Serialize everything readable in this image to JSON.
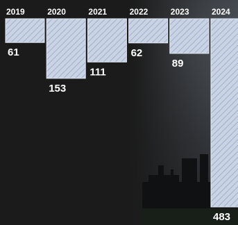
{
  "chart_data": {
    "type": "bar",
    "orientation": "downward",
    "categories": [
      "2019",
      "2020",
      "2021",
      "2022",
      "2023",
      "2024"
    ],
    "values": [
      61,
      153,
      111,
      62,
      89,
      483
    ],
    "value_labels": [
      "61",
      "153",
      "111",
      "62",
      "89",
      "483"
    ],
    "title": "",
    "xlabel": "",
    "ylabel": "",
    "ylim": [
      0,
      483
    ],
    "grid": false,
    "legend": "none",
    "bar_fill": "#c9d3e4",
    "bar_hatch": "#9fb0cb",
    "bar_stroke": "#e6ecf5"
  },
  "colors": {
    "background": "#1b1b1b",
    "photo_sky": "#3a3e44",
    "text": "#ffffff"
  }
}
